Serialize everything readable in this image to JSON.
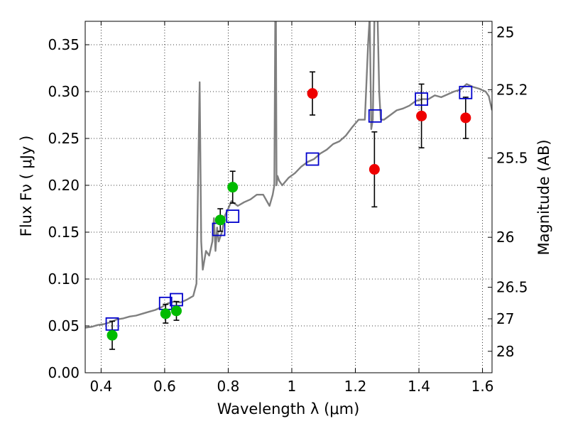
{
  "chart_data": {
    "type": "scatter",
    "xlabel": "Wavelength  λ (μm)",
    "ylabel": "Flux  Fν  ( μJy )",
    "y2label": "Magnitude (AB)",
    "xlim": [
      0.35,
      1.63
    ],
    "ylim": [
      0.0,
      0.375
    ],
    "grid": true,
    "x_ticks": [
      0.4,
      0.6,
      0.8,
      1.0,
      1.2,
      1.4,
      1.6
    ],
    "x_tick_labels": [
      "0.4",
      "0.6",
      "0.8",
      "1",
      "1.2",
      "1.4",
      "1.6"
    ],
    "y_ticks": [
      0.0,
      0.05,
      0.1,
      0.15,
      0.2,
      0.25,
      0.3,
      0.35
    ],
    "y_tick_labels": [
      "0.00",
      "0.05",
      "0.10",
      "0.15",
      "0.20",
      "0.25",
      "0.30",
      "0.35"
    ],
    "y2_ticks": [
      25,
      25.2,
      25.5,
      26,
      26.5,
      27,
      28
    ],
    "y2_tick_labels": [
      "25",
      "25.2",
      "25.5",
      "26",
      "26.5",
      "27",
      "28"
    ],
    "series": [
      {
        "kind": "line",
        "color": "#7f7f7f",
        "x": [
          0.35,
          0.37,
          0.39,
          0.41,
          0.43,
          0.45,
          0.47,
          0.49,
          0.51,
          0.53,
          0.55,
          0.57,
          0.59,
          0.61,
          0.63,
          0.65,
          0.67,
          0.69,
          0.7,
          0.705,
          0.71,
          0.715,
          0.72,
          0.73,
          0.74,
          0.75,
          0.755,
          0.76,
          0.765,
          0.77,
          0.78,
          0.79,
          0.8,
          0.81,
          0.83,
          0.85,
          0.87,
          0.89,
          0.91,
          0.93,
          0.94,
          0.945,
          0.948,
          0.95,
          0.952,
          0.955,
          0.96,
          0.97,
          0.99,
          1.01,
          1.03,
          1.05,
          1.07,
          1.09,
          1.11,
          1.13,
          1.15,
          1.17,
          1.19,
          1.21,
          1.23,
          1.24,
          1.245,
          1.25,
          1.255,
          1.26,
          1.265,
          1.27,
          1.275,
          1.28,
          1.29,
          1.31,
          1.33,
          1.35,
          1.37,
          1.39,
          1.41,
          1.43,
          1.45,
          1.47,
          1.49,
          1.51,
          1.53,
          1.55,
          1.57,
          1.59,
          1.61,
          1.62,
          1.63
        ],
        "y": [
          0.048,
          0.049,
          0.051,
          0.052,
          0.054,
          0.057,
          0.058,
          0.06,
          0.061,
          0.063,
          0.065,
          0.067,
          0.07,
          0.074,
          0.076,
          0.075,
          0.078,
          0.082,
          0.095,
          0.2,
          0.31,
          0.14,
          0.11,
          0.13,
          0.125,
          0.14,
          0.165,
          0.13,
          0.155,
          0.14,
          0.15,
          0.168,
          0.175,
          0.183,
          0.178,
          0.182,
          0.185,
          0.19,
          0.19,
          0.178,
          0.19,
          0.2,
          0.38,
          0.38,
          0.2,
          0.21,
          0.205,
          0.2,
          0.208,
          0.213,
          0.22,
          0.225,
          0.228,
          0.234,
          0.238,
          0.244,
          0.247,
          0.253,
          0.262,
          0.27,
          0.27,
          0.35,
          0.38,
          0.26,
          0.27,
          0.38,
          0.38,
          0.38,
          0.3,
          0.27,
          0.27,
          0.275,
          0.28,
          0.282,
          0.285,
          0.29,
          0.292,
          0.292,
          0.296,
          0.294,
          0.297,
          0.3,
          0.302,
          0.308,
          0.305,
          0.303,
          0.3,
          0.295,
          0.28
        ]
      },
      {
        "kind": "points",
        "name": "",
        "color": "#0000cc",
        "marker": "open-square",
        "x": [
          0.435,
          0.603,
          0.637,
          0.77,
          0.814,
          1.065,
          1.262,
          1.408,
          1.547
        ],
        "y": [
          0.052,
          0.074,
          0.078,
          0.153,
          0.167,
          0.228,
          0.274,
          0.292,
          0.299
        ]
      },
      {
        "kind": "points",
        "name": "",
        "color": "#00bb00",
        "marker": "filled-circle",
        "x": [
          0.435,
          0.603,
          0.637,
          0.775,
          0.814
        ],
        "y": [
          0.04,
          0.063,
          0.066,
          0.163,
          0.198
        ],
        "err": [
          0.015,
          0.01,
          0.01,
          0.012,
          0.017
        ]
      },
      {
        "kind": "points",
        "name": "",
        "color": "#ee0000",
        "marker": "filled-circle",
        "x": [
          1.065,
          1.26,
          1.408,
          1.547
        ],
        "y": [
          0.298,
          0.217,
          0.274,
          0.272
        ],
        "err": [
          0.023,
          0.04,
          0.034,
          0.022
        ]
      }
    ]
  }
}
